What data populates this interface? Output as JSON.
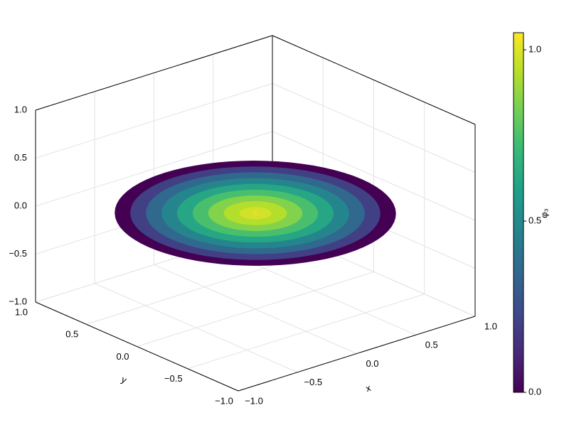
{
  "chart_data": {
    "type": "surface3d",
    "xlabel": "x",
    "ylabel": "y",
    "colorbar_label": "φ₃",
    "xlim": [
      -1,
      1
    ],
    "ylim": [
      -1,
      1
    ],
    "zlim": [
      -1,
      1
    ],
    "xticks": [
      {
        "value": -1,
        "label": "−1.0"
      },
      {
        "value": -0.5,
        "label": "−0.5"
      },
      {
        "value": 0,
        "label": "0.0"
      },
      {
        "value": 0.5,
        "label": "0.5"
      },
      {
        "value": 1,
        "label": "1.0"
      }
    ],
    "yticks": [
      {
        "value": -1,
        "label": "−1.0"
      },
      {
        "value": -0.5,
        "label": "−0.5"
      },
      {
        "value": 0,
        "label": "0.0"
      },
      {
        "value": 0.5,
        "label": "0.5"
      },
      {
        "value": 1,
        "label": "1.0"
      }
    ],
    "zticks": [
      {
        "value": -1,
        "label": "−1.0"
      },
      {
        "value": -0.5,
        "label": "−0.5"
      },
      {
        "value": 0,
        "label": "0.0"
      },
      {
        "value": 0.5,
        "label": "0.5"
      },
      {
        "value": 1,
        "label": "1.0"
      }
    ],
    "clim": [
      0,
      1.05
    ],
    "cticks": [
      {
        "value": 0,
        "label": "0.0"
      },
      {
        "value": 0.5,
        "label": "0.5"
      },
      {
        "value": 1,
        "label": "1.0"
      }
    ],
    "colormap": "viridis",
    "grid": true,
    "r": [
      0,
      0.1,
      0.2,
      0.3,
      0.4,
      0.5,
      0.6,
      0.7,
      0.8,
      0.9
    ],
    "values": [
      1.0,
      0.98,
      0.93,
      0.85,
      0.74,
      0.62,
      0.48,
      0.35,
      0.2,
      0.0
    ]
  }
}
